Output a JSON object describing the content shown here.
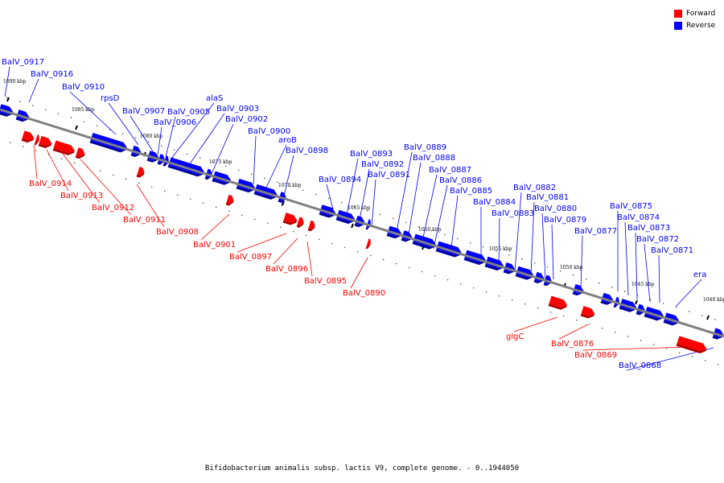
{
  "colors": {
    "forward": "#ff0000",
    "reverse": "#0000ff",
    "backbone": "#808080"
  },
  "legend": [
    {
      "key": "forward",
      "label": "Forward"
    },
    {
      "key": "reverse",
      "label": "Reverse"
    }
  ],
  "caption": "Bifidobacterium animalis subsp. lactis V9, complete genome. - 0..1944050",
  "ticks": [
    "1090 kbp",
    "1085 kbp",
    "1080 kbp",
    "1075 kbp",
    "1070 kbp",
    "1065 kbp",
    "1060 kbp",
    "1055 kbp",
    "1050 kbp",
    "1045 kbp",
    "1040 kbp"
  ],
  "reverse_genes": [
    "BalV_0917",
    "BalV_0916",
    "BalV_0910",
    "rpsD",
    "BalV_0907",
    "BalV_0906",
    "BalV_0905",
    "alaS",
    "BalV_0903",
    "BalV_0902",
    "BalV_0900",
    "aroB",
    "BalV_0898",
    "BalV_0894",
    "BalV_0893",
    "BalV_0892",
    "BalV_0891",
    "BalV_0889",
    "BalV_0888",
    "BalV_0887",
    "BalV_0886",
    "BalV_0885",
    "BalV_0884",
    "BalV_0883",
    "BalV_0882",
    "BalV_0881",
    "BalV_0880",
    "BalV_0879",
    "BalV_0877",
    "BalV_0875",
    "BalV_0874",
    "BalV_0873",
    "BalV_0872",
    "BalV_0871",
    "era",
    "BalV_0868"
  ],
  "forward_genes": [
    "BalV_0914",
    "BalV_0913",
    "BalV_0912",
    "BalV_0911",
    "BalV_0908",
    "BalV_0901",
    "BalV_0897",
    "BalV_0896",
    "BalV_0895",
    "BalV_0890",
    "glgC",
    "BalV_0876",
    "BalV_0869"
  ]
}
